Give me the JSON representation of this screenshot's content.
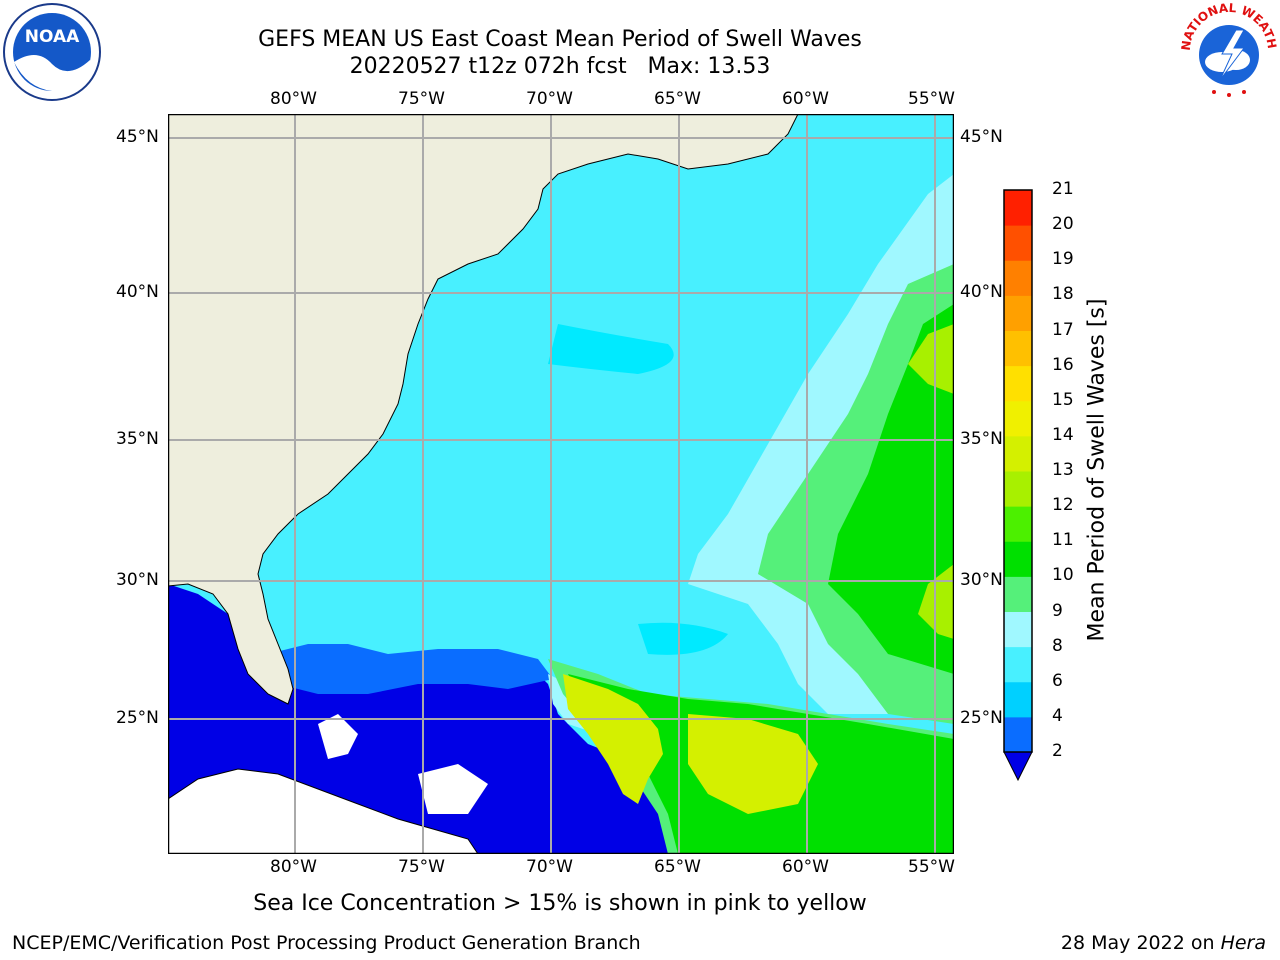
{
  "title": {
    "line1": "GEFS MEAN US East Coast Mean Period of Swell Waves",
    "line2": "20220527 t12z 072h fcst   Max: 13.53"
  },
  "axes": {
    "lon_labels": [
      "80°W",
      "75°W",
      "70°W",
      "65°W",
      "60°W",
      "55°W"
    ],
    "lat_labels": [
      "45°N",
      "40°N",
      "35°N",
      "30°N",
      "25°N"
    ]
  },
  "colorbar": {
    "label": "Mean Period of Swell Waves [s]",
    "ticks": [
      "2",
      "4",
      "6",
      "8",
      "9",
      "10",
      "11",
      "12",
      "13",
      "14",
      "15",
      "16",
      "17",
      "18",
      "19",
      "20",
      "21"
    ],
    "colors": [
      "#0a6dff",
      "#00d0ff",
      "#48f0ff",
      "#a0f8ff",
      "#55f07a",
      "#00e000",
      "#4cf000",
      "#a8f000",
      "#d4f000",
      "#f0f000",
      "#ffe000",
      "#ffc000",
      "#ffa000",
      "#ff8000",
      "#ff5000",
      "#ff2000",
      "#ff0000"
    ],
    "under_color": "#0000e6"
  },
  "footer": {
    "subtitle": "Sea Ice Concentration > 15% is shown in pink to yellow",
    "credit": "NCEP/EMC/Verification Post Processing Product Generation Branch",
    "date": "28 May 2022 on ",
    "machine": "Hera"
  },
  "logos": {
    "left": "NOAA",
    "right": "NATIONAL WEATHER SERVICE"
  },
  "colors": {
    "land": "#eeeedd",
    "grid": "#aaaaaa",
    "ocean_base": "#48f0ff"
  }
}
